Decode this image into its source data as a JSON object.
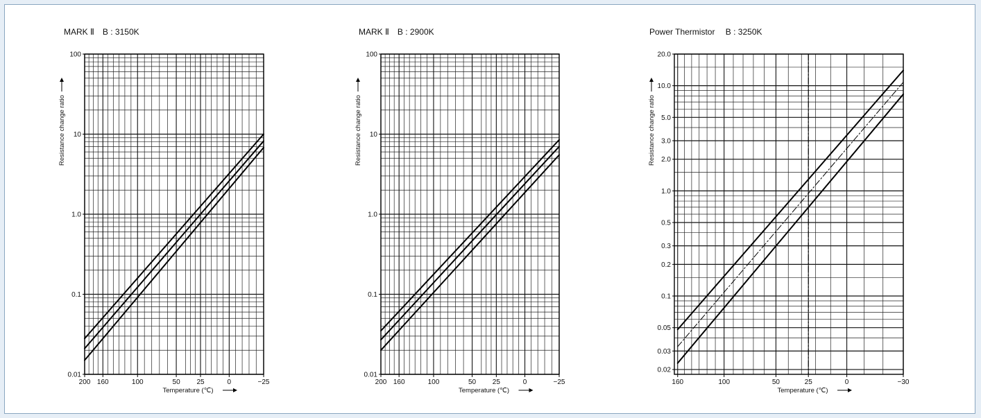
{
  "chart_data": [
    {
      "type": "line",
      "title": "MARK Ⅱ　B : 3150K",
      "xlabel": "Temperature (℃)",
      "ylabel": "Resistance change ratio",
      "x_ticks": [
        "200",
        "160",
        "100",
        "50",
        "25",
        "0",
        "−25"
      ],
      "x_tick_values": [
        200,
        160,
        100,
        50,
        25,
        0,
        -25
      ],
      "x_scale": "reciprocal-temperature",
      "y_ticks": [
        "100",
        "10",
        "1.0",
        "0.1",
        "0.01"
      ],
      "y_tick_values": [
        100,
        10,
        1,
        0.1,
        0.01
      ],
      "y_scale": "log",
      "xlim": [
        200,
        -25
      ],
      "ylim": [
        0.01,
        100
      ],
      "grid": true,
      "series": [
        {
          "x": [
            200,
            -25
          ],
          "y": [
            0.028,
            10.0
          ]
        },
        {
          "x": [
            200,
            -25
          ],
          "y": [
            0.021,
            8.2
          ]
        },
        {
          "x": [
            200,
            -25
          ],
          "y": [
            0.015,
            6.8
          ]
        }
      ]
    },
    {
      "type": "line",
      "title": "MARK Ⅱ　B : 2900K",
      "xlabel": "Temperature (℃)",
      "ylabel": "Resistance change ratio",
      "x_ticks": [
        "200",
        "160",
        "100",
        "50",
        "25",
        "0",
        "−25"
      ],
      "x_tick_values": [
        200,
        160,
        100,
        50,
        25,
        0,
        -25
      ],
      "x_scale": "reciprocal-temperature",
      "y_ticks": [
        "100",
        "10",
        "1.0",
        "0.1",
        "0.01"
      ],
      "y_tick_values": [
        100,
        10,
        1,
        0.1,
        0.01
      ],
      "y_scale": "log",
      "xlim": [
        200,
        -25
      ],
      "ylim": [
        0.01,
        100
      ],
      "grid": true,
      "series": [
        {
          "x": [
            200,
            -25
          ],
          "y": [
            0.035,
            8.5
          ]
        },
        {
          "x": [
            200,
            -25
          ],
          "y": [
            0.027,
            7.0
          ]
        },
        {
          "x": [
            200,
            -25
          ],
          "y": [
            0.02,
            5.5
          ]
        }
      ]
    },
    {
      "type": "line",
      "title": "Power Thermistor　 B : 3250K",
      "xlabel": "Temperature (℃)",
      "ylabel": "Resistance change ratio",
      "x_ticks": [
        "160",
        "100",
        "50",
        "25",
        "0",
        "−30"
      ],
      "x_tick_values": [
        160,
        100,
        50,
        25,
        0,
        -30
      ],
      "x_scale": "reciprocal-temperature",
      "y_ticks": [
        "20.0",
        "10.0",
        "5.0",
        "3.0",
        "2.0",
        "1.0",
        "0.5",
        "0.3",
        "0.2",
        "0.1",
        "0.05",
        "0.03",
        "0.02"
      ],
      "y_tick_values": [
        20,
        10,
        5,
        3,
        2,
        1,
        0.5,
        0.3,
        0.2,
        0.1,
        0.05,
        0.03,
        0.02
      ],
      "y_scale": "log",
      "xlim": [
        165,
        -30
      ],
      "ylim": [
        0.018,
        20
      ],
      "grid": true,
      "reference_line": {
        "x": 25,
        "style": "dash-dot"
      },
      "series": [
        {
          "x": [
            160,
            -30
          ],
          "y": [
            0.048,
            14.0
          ],
          "style": "solid"
        },
        {
          "x": [
            160,
            -30
          ],
          "y": [
            0.033,
            10.8
          ],
          "style": "dash-dot"
        },
        {
          "x": [
            160,
            -30
          ],
          "y": [
            0.023,
            8.3
          ],
          "style": "solid"
        }
      ]
    }
  ]
}
